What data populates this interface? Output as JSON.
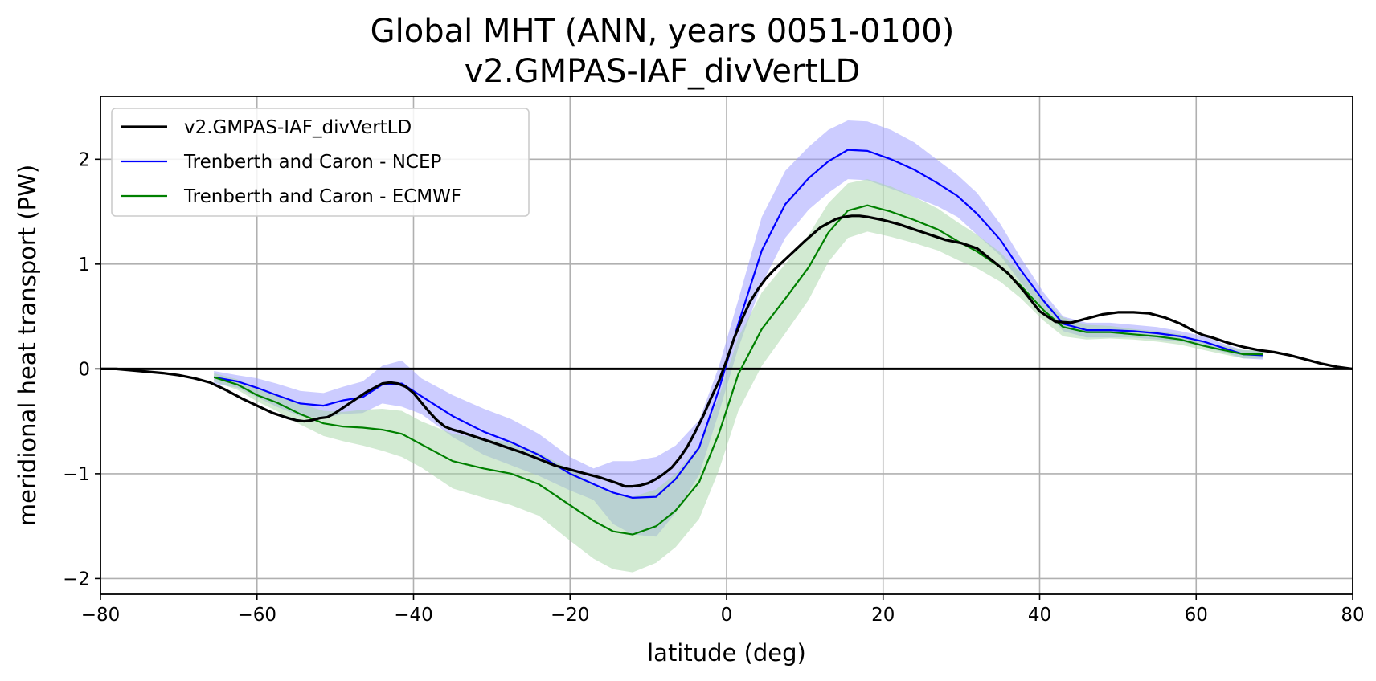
{
  "chart_data": {
    "type": "line",
    "title": "Global MHT (ANN, years 0051-0100)",
    "subtitle": "v2.GMPAS-IAF_divVertLD",
    "xlabel": "latitude (deg)",
    "ylabel": "meridional heat transport (PW)",
    "xlim": [
      -80,
      80
    ],
    "ylim": [
      -2.15,
      2.6
    ],
    "xticks": [
      -80,
      -60,
      -40,
      -20,
      0,
      20,
      40,
      60,
      80
    ],
    "xtick_labels": [
      "−80",
      "−60",
      "−40",
      "−20",
      "0",
      "20",
      "40",
      "60",
      "80"
    ],
    "yticks": [
      -2,
      -1,
      0,
      1,
      2
    ],
    "ytick_labels": [
      "−2",
      "−1",
      "0",
      "1",
      "2"
    ],
    "grid": true,
    "legend_position": "top-left",
    "zero_line": true,
    "series": [
      {
        "name": "v2.GMPAS-IAF_divVertLD",
        "color": "#000000",
        "x": [
          -80,
          -78,
          -75,
          -72,
          -70,
          -68,
          -66,
          -64,
          -62,
          -60,
          -58,
          -56,
          -55,
          -54,
          -53,
          -52,
          -51,
          -50,
          -48,
          -46,
          -44,
          -43,
          -42,
          -41,
          -40,
          -39,
          -38,
          -37,
          -36,
          -35,
          -34,
          -32,
          -30,
          -28,
          -26,
          -24,
          -22,
          -20,
          -18,
          -16,
          -14,
          -13,
          -12,
          -11,
          -10,
          -9,
          -8,
          -7,
          -6,
          -5,
          -4,
          -3,
          -2,
          -1,
          0,
          1,
          2,
          3,
          4,
          5,
          6,
          8,
          10,
          12,
          14,
          15,
          16,
          17,
          18,
          20,
          22,
          24,
          26,
          28,
          30,
          32,
          34,
          36,
          38,
          40,
          42,
          44,
          46,
          48,
          50,
          52,
          54,
          56,
          58,
          60,
          61,
          62,
          64,
          66,
          68,
          70,
          72,
          74,
          76,
          78,
          80
        ],
        "y": [
          0.0,
          0.0,
          -0.02,
          -0.04,
          -0.06,
          -0.09,
          -0.13,
          -0.2,
          -0.28,
          -0.35,
          -0.42,
          -0.47,
          -0.49,
          -0.5,
          -0.49,
          -0.47,
          -0.46,
          -0.42,
          -0.32,
          -0.22,
          -0.14,
          -0.13,
          -0.14,
          -0.17,
          -0.23,
          -0.32,
          -0.41,
          -0.49,
          -0.55,
          -0.58,
          -0.6,
          -0.65,
          -0.7,
          -0.75,
          -0.8,
          -0.86,
          -0.92,
          -0.96,
          -1.0,
          -1.04,
          -1.09,
          -1.12,
          -1.12,
          -1.11,
          -1.09,
          -1.05,
          -1.0,
          -0.94,
          -0.85,
          -0.74,
          -0.6,
          -0.45,
          -0.28,
          -0.12,
          0.08,
          0.3,
          0.48,
          0.64,
          0.76,
          0.86,
          0.94,
          1.08,
          1.22,
          1.35,
          1.43,
          1.45,
          1.46,
          1.46,
          1.45,
          1.42,
          1.38,
          1.33,
          1.28,
          1.23,
          1.2,
          1.15,
          1.03,
          0.91,
          0.74,
          0.55,
          0.45,
          0.44,
          0.48,
          0.52,
          0.54,
          0.54,
          0.53,
          0.49,
          0.43,
          0.35,
          0.32,
          0.3,
          0.25,
          0.21,
          0.18,
          0.16,
          0.13,
          0.09,
          0.05,
          0.02,
          0.0
        ]
      },
      {
        "name": "Trenberth and Caron - NCEP",
        "color": "#0000ff",
        "band_color": "#9999ff",
        "x": [
          -65.5,
          -62.5,
          -60,
          -57.5,
          -54.5,
          -51.5,
          -49,
          -46.5,
          -44,
          -41.5,
          -39,
          -35,
          -31,
          -27.5,
          -24,
          -20,
          -17,
          -14.5,
          -12,
          -9,
          -6.5,
          -3.5,
          -1,
          1.5,
          4.5,
          7.5,
          10.5,
          13,
          15.5,
          18,
          21,
          24,
          27,
          29.5,
          32,
          35,
          37.5,
          40.5,
          43,
          46,
          49,
          52,
          55,
          58,
          61,
          63.5,
          66,
          68.5
        ],
        "y": [
          -0.08,
          -0.12,
          -0.18,
          -0.25,
          -0.33,
          -0.35,
          -0.3,
          -0.27,
          -0.15,
          -0.14,
          -0.26,
          -0.45,
          -0.6,
          -0.7,
          -0.82,
          -1.0,
          -1.1,
          -1.18,
          -1.23,
          -1.22,
          -1.05,
          -0.75,
          -0.2,
          0.43,
          1.13,
          1.57,
          1.82,
          1.98,
          2.09,
          2.08,
          2.0,
          1.9,
          1.77,
          1.65,
          1.48,
          1.23,
          0.95,
          0.65,
          0.43,
          0.37,
          0.37,
          0.36,
          0.34,
          0.31,
          0.26,
          0.2,
          0.14,
          0.13
        ],
        "band_halfwidth": [
          0.06,
          0.06,
          0.09,
          0.11,
          0.12,
          0.12,
          0.13,
          0.15,
          0.18,
          0.22,
          0.17,
          0.2,
          0.22,
          0.22,
          0.2,
          0.16,
          0.15,
          0.3,
          0.35,
          0.38,
          0.32,
          0.26,
          0.22,
          0.23,
          0.32,
          0.32,
          0.3,
          0.3,
          0.28,
          0.28,
          0.28,
          0.26,
          0.22,
          0.2,
          0.2,
          0.15,
          0.12,
          0.08,
          0.07,
          0.07,
          0.07,
          0.06,
          0.06,
          0.05,
          0.05,
          0.04,
          0.04,
          0.04
        ]
      },
      {
        "name": "Trenberth and Caron - ECMWF",
        "color": "#008000",
        "band_color": "#a6d5a6",
        "x": [
          -65.5,
          -62.5,
          -60,
          -57.5,
          -54.5,
          -51.5,
          -49,
          -46.5,
          -44,
          -41.5,
          -39,
          -35,
          -31,
          -27.5,
          -24,
          -20,
          -17,
          -14.5,
          -12,
          -9,
          -6.5,
          -3.5,
          -1,
          1.5,
          4.5,
          7.5,
          10.5,
          13,
          15.5,
          18,
          21,
          24,
          27,
          29.5,
          32,
          35,
          37.5,
          40.5,
          43,
          46,
          49,
          52,
          55,
          58,
          61,
          63.5,
          66,
          68.5
        ],
        "y": [
          -0.08,
          -0.15,
          -0.25,
          -0.32,
          -0.43,
          -0.52,
          -0.55,
          -0.56,
          -0.58,
          -0.62,
          -0.72,
          -0.88,
          -0.95,
          -1.0,
          -1.1,
          -1.3,
          -1.45,
          -1.55,
          -1.58,
          -1.5,
          -1.35,
          -1.08,
          -0.62,
          -0.05,
          0.38,
          0.67,
          0.97,
          1.3,
          1.51,
          1.56,
          1.5,
          1.42,
          1.33,
          1.22,
          1.12,
          0.97,
          0.8,
          0.56,
          0.4,
          0.35,
          0.35,
          0.33,
          0.31,
          0.28,
          0.22,
          0.18,
          0.14,
          0.14
        ],
        "band_halfwidth": [
          0.04,
          0.05,
          0.06,
          0.08,
          0.1,
          0.12,
          0.14,
          0.17,
          0.2,
          0.22,
          0.22,
          0.26,
          0.28,
          0.3,
          0.3,
          0.34,
          0.36,
          0.36,
          0.36,
          0.35,
          0.35,
          0.35,
          0.35,
          0.35,
          0.35,
          0.33,
          0.31,
          0.28,
          0.26,
          0.25,
          0.24,
          0.22,
          0.2,
          0.18,
          0.16,
          0.14,
          0.12,
          0.1,
          0.09,
          0.07,
          0.06,
          0.05,
          0.05,
          0.05,
          0.04,
          0.04,
          0.04,
          0.04
        ]
      }
    ]
  }
}
